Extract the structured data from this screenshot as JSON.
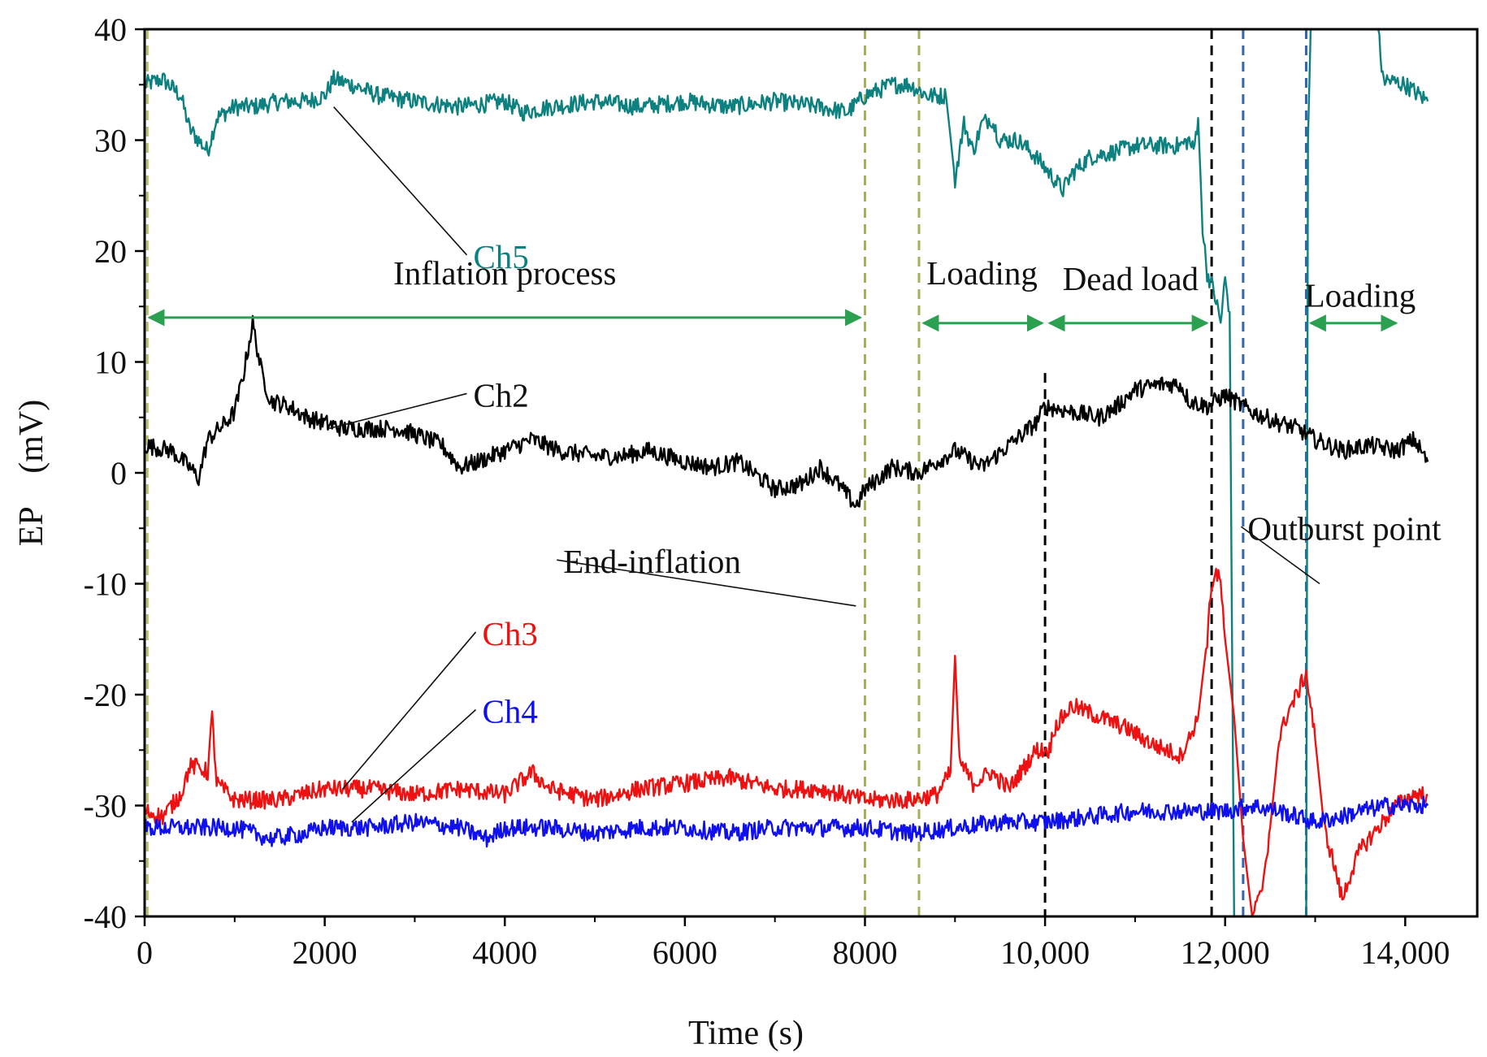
{
  "chart_data": {
    "type": "line",
    "title": "",
    "xlabel": "Time (s)",
    "ylabel": "EP　(mV)",
    "xlim": [
      0,
      14800
    ],
    "ylim": [
      -40,
      40
    ],
    "x_ticks": [
      {
        "value": 0,
        "label": "0"
      },
      {
        "value": 2000,
        "label": "2000"
      },
      {
        "value": 4000,
        "label": "4000"
      },
      {
        "value": 6000,
        "label": "6000"
      },
      {
        "value": 8000,
        "label": "8000"
      },
      {
        "value": 10000,
        "label": "10,000"
      },
      {
        "value": 12000,
        "label": "12,000"
      },
      {
        "value": 14000,
        "label": "14,000"
      }
    ],
    "y_ticks": [
      {
        "value": 40,
        "label": "40"
      },
      {
        "value": 30,
        "label": "30"
      },
      {
        "value": 20,
        "label": "20"
      },
      {
        "value": 10,
        "label": "10"
      },
      {
        "value": 0,
        "label": "0"
      },
      {
        "value": -10,
        "label": "-10"
      },
      {
        "value": -20,
        "label": "-20"
      },
      {
        "value": -30,
        "label": "-30"
      },
      {
        "value": -40,
        "label": "-40"
      }
    ],
    "grid": false,
    "series": [
      {
        "name": "Ch5",
        "color": "#0d8080",
        "points": [
          [
            0,
            35
          ],
          [
            200,
            35.5
          ],
          [
            400,
            34
          ],
          [
            500,
            31
          ],
          [
            600,
            30
          ],
          [
            700,
            29
          ],
          [
            800,
            32
          ],
          [
            1000,
            33
          ],
          [
            1200,
            33
          ],
          [
            1500,
            33.5
          ],
          [
            1800,
            33.5
          ],
          [
            2000,
            34
          ],
          [
            2100,
            35.5
          ],
          [
            2300,
            35
          ],
          [
            2600,
            34
          ],
          [
            3000,
            33.5
          ],
          [
            3500,
            33
          ],
          [
            4000,
            33.5
          ],
          [
            4200,
            32.5
          ],
          [
            4500,
            33
          ],
          [
            5000,
            33.5
          ],
          [
            5500,
            33
          ],
          [
            6000,
            33.5
          ],
          [
            6500,
            33
          ],
          [
            7000,
            33.5
          ],
          [
            7500,
            33
          ],
          [
            7800,
            32.5
          ],
          [
            8000,
            34
          ],
          [
            8300,
            35
          ],
          [
            8500,
            35
          ],
          [
            8700,
            34
          ],
          [
            8900,
            34
          ],
          [
            9000,
            26.5
          ],
          [
            9100,
            31.5
          ],
          [
            9200,
            29
          ],
          [
            9300,
            31.5
          ],
          [
            9400,
            32
          ],
          [
            9500,
            30
          ],
          [
            9700,
            30
          ],
          [
            9900,
            28.5
          ],
          [
            10100,
            26.5
          ],
          [
            10200,
            25.5
          ],
          [
            10300,
            27
          ],
          [
            10500,
            28.5
          ],
          [
            10800,
            29
          ],
          [
            11000,
            29.5
          ],
          [
            11300,
            29.5
          ],
          [
            11500,
            29.5
          ],
          [
            11600,
            30
          ],
          [
            11650,
            29
          ],
          [
            11700,
            32
          ],
          [
            11750,
            22
          ],
          [
            11800,
            18
          ],
          [
            11850,
            17
          ],
          [
            11900,
            15.5
          ],
          [
            11950,
            13.5
          ],
          [
            12000,
            17.5
          ],
          [
            12050,
            14.5
          ],
          [
            12100,
            -40
          ],
          [
            12900,
            -40
          ],
          [
            12920,
            30
          ],
          [
            12950,
            40
          ],
          [
            13700,
            40
          ],
          [
            13750,
            35.5
          ],
          [
            14000,
            35
          ],
          [
            14250,
            33.5
          ]
        ]
      },
      {
        "name": "Ch2",
        "color": "#000000",
        "points": [
          [
            0,
            2.5
          ],
          [
            300,
            2
          ],
          [
            500,
            0.5
          ],
          [
            600,
            -0.5
          ],
          [
            700,
            3
          ],
          [
            900,
            4.5
          ],
          [
            1000,
            5.5
          ],
          [
            1100,
            9
          ],
          [
            1200,
            13.5
          ],
          [
            1300,
            9
          ],
          [
            1400,
            6.5
          ],
          [
            1600,
            6
          ],
          [
            1800,
            5
          ],
          [
            2000,
            4.5
          ],
          [
            2200,
            4
          ],
          [
            2500,
            4
          ],
          [
            2800,
            4
          ],
          [
            3000,
            3.5
          ],
          [
            3300,
            2.5
          ],
          [
            3500,
            0.5
          ],
          [
            3700,
            1
          ],
          [
            4000,
            2
          ],
          [
            4300,
            3
          ],
          [
            4600,
            2
          ],
          [
            5000,
            1.5
          ],
          [
            5300,
            1.5
          ],
          [
            5600,
            2
          ],
          [
            6000,
            1
          ],
          [
            6300,
            0.5
          ],
          [
            6600,
            1
          ],
          [
            7000,
            -1.5
          ],
          [
            7300,
            -1
          ],
          [
            7500,
            0.5
          ],
          [
            7700,
            -1
          ],
          [
            7900,
            -3
          ],
          [
            8000,
            -1.5
          ],
          [
            8300,
            0.5
          ],
          [
            8600,
            0
          ],
          [
            9000,
            2
          ],
          [
            9300,
            0.5
          ],
          [
            9600,
            2.5
          ],
          [
            9900,
            4.5
          ],
          [
            10000,
            6
          ],
          [
            10300,
            5.5
          ],
          [
            10600,
            5
          ],
          [
            10800,
            6
          ],
          [
            11000,
            7.5
          ],
          [
            11300,
            8
          ],
          [
            11500,
            8
          ],
          [
            11600,
            6.5
          ],
          [
            11800,
            6
          ],
          [
            12000,
            7
          ],
          [
            12300,
            5.5
          ],
          [
            12600,
            4.5
          ],
          [
            12800,
            4
          ],
          [
            13000,
            3
          ],
          [
            13300,
            2
          ],
          [
            13600,
            2.5
          ],
          [
            13900,
            2
          ],
          [
            14100,
            3
          ],
          [
            14250,
            1
          ]
        ]
      },
      {
        "name": "Ch3",
        "color": "#ee1111",
        "points": [
          [
            0,
            -30.5
          ],
          [
            200,
            -31
          ],
          [
            400,
            -29
          ],
          [
            500,
            -26.5
          ],
          [
            600,
            -26.5
          ],
          [
            700,
            -27
          ],
          [
            750,
            -22
          ],
          [
            800,
            -28
          ],
          [
            1000,
            -29.5
          ],
          [
            1500,
            -29.5
          ],
          [
            2000,
            -28.5
          ],
          [
            2500,
            -28.5
          ],
          [
            3000,
            -29
          ],
          [
            3500,
            -28.5
          ],
          [
            4000,
            -29
          ],
          [
            4300,
            -27
          ],
          [
            4500,
            -28.5
          ],
          [
            5000,
            -29.5
          ],
          [
            5500,
            -28.5
          ],
          [
            6000,
            -28
          ],
          [
            6500,
            -27.5
          ],
          [
            7000,
            -28.5
          ],
          [
            7500,
            -28.5
          ],
          [
            8000,
            -29.5
          ],
          [
            8500,
            -29.5
          ],
          [
            8800,
            -29
          ],
          [
            8950,
            -27
          ],
          [
            9000,
            -16.5
          ],
          [
            9050,
            -26
          ],
          [
            9200,
            -28
          ],
          [
            9400,
            -27
          ],
          [
            9600,
            -28.5
          ],
          [
            9900,
            -25
          ],
          [
            10000,
            -25
          ],
          [
            10050,
            -25
          ],
          [
            10100,
            -23
          ],
          [
            10300,
            -21
          ],
          [
            10600,
            -22
          ],
          [
            10900,
            -23
          ],
          [
            11200,
            -24.5
          ],
          [
            11500,
            -25.5
          ],
          [
            11600,
            -24
          ],
          [
            11700,
            -22
          ],
          [
            11800,
            -15
          ],
          [
            11850,
            -10
          ],
          [
            11900,
            -9
          ],
          [
            11950,
            -10
          ],
          [
            12000,
            -15
          ],
          [
            12100,
            -22
          ],
          [
            12200,
            -33
          ],
          [
            12300,
            -40
          ],
          [
            12400,
            -38
          ],
          [
            12500,
            -32
          ],
          [
            12600,
            -24
          ],
          [
            12700,
            -21.5
          ],
          [
            12800,
            -20
          ],
          [
            12900,
            -18
          ],
          [
            13000,
            -24
          ],
          [
            13100,
            -32
          ],
          [
            13200,
            -35
          ],
          [
            13300,
            -38.5
          ],
          [
            13400,
            -36
          ],
          [
            13500,
            -34
          ],
          [
            13700,
            -32
          ],
          [
            13900,
            -30
          ],
          [
            14100,
            -29
          ],
          [
            14250,
            -29
          ]
        ]
      },
      {
        "name": "Ch4",
        "color": "#1010ee",
        "points": [
          [
            0,
            -32
          ],
          [
            500,
            -32
          ],
          [
            1000,
            -32
          ],
          [
            1400,
            -33
          ],
          [
            1800,
            -32.5
          ],
          [
            2000,
            -32
          ],
          [
            2500,
            -32
          ],
          [
            3000,
            -31.5
          ],
          [
            3500,
            -32
          ],
          [
            3800,
            -33
          ],
          [
            4000,
            -32
          ],
          [
            4500,
            -32
          ],
          [
            5000,
            -32.5
          ],
          [
            5500,
            -32
          ],
          [
            6000,
            -32
          ],
          [
            6500,
            -32.5
          ],
          [
            7000,
            -32
          ],
          [
            7500,
            -32
          ],
          [
            8000,
            -32
          ],
          [
            8500,
            -32.5
          ],
          [
            9000,
            -32
          ],
          [
            9500,
            -31.5
          ],
          [
            10000,
            -31.5
          ],
          [
            10500,
            -31
          ],
          [
            11000,
            -30.5
          ],
          [
            11500,
            -30.5
          ],
          [
            12000,
            -30.5
          ],
          [
            12300,
            -30
          ],
          [
            12600,
            -30.5
          ],
          [
            12800,
            -31
          ],
          [
            13000,
            -31.5
          ],
          [
            13300,
            -31
          ],
          [
            13500,
            -30.5
          ],
          [
            13800,
            -30
          ],
          [
            14000,
            -30
          ],
          [
            14250,
            -30
          ]
        ]
      }
    ],
    "vertical_lines": [
      {
        "x": 30,
        "color": "#b8bf6a",
        "style": "dashed"
      },
      {
        "x": 8000,
        "color": "#a6b05a",
        "style": "dashed"
      },
      {
        "x": 8600,
        "color": "#a6b05a",
        "style": "dashed"
      },
      {
        "x": 10000,
        "color": "#000000",
        "style": "dashed",
        "y_top": 9
      },
      {
        "x": 11850,
        "color": "#000000",
        "style": "dashed"
      },
      {
        "x": 12200,
        "color": "#3565a8",
        "style": "dashed"
      },
      {
        "x": 12900,
        "color": "#3565a8",
        "style": "dashed"
      }
    ],
    "annotations": [
      {
        "text": "Ch5",
        "color": "#0d8080",
        "x": 3650,
        "y": 19.5,
        "line_to": [
          2100,
          33
        ]
      },
      {
        "text": "Ch2",
        "color": "#111111",
        "x": 3650,
        "y": 7,
        "line_to": [
          2050,
          4
        ]
      },
      {
        "text": "Ch3",
        "color": "#ee1111",
        "x": 3750,
        "y": -14.5,
        "line_to": [
          2200,
          -28.5
        ]
      },
      {
        "text": "Ch4",
        "color": "#1010ee",
        "x": 3750,
        "y": -21.5,
        "line_to": [
          2300,
          -31.5
        ]
      },
      {
        "text": "End-inflation",
        "color": "#111111",
        "x": 4650,
        "y": -8,
        "line_to": [
          7900,
          -12
        ]
      },
      {
        "text": "Outburst point",
        "color": "#111111",
        "x": 12250,
        "y": -5,
        "line_to": [
          13050,
          -10
        ]
      }
    ],
    "phases": [
      {
        "label": "Inflation process",
        "color": "#2aa050",
        "x_start": 50,
        "x_end": 7950,
        "arrow_y": 14,
        "label_x": 4000,
        "label_y": 17
      },
      {
        "label": "Loading",
        "color": "#2aa050",
        "x_start": 8650,
        "x_end": 9970,
        "arrow_y": 13.5,
        "label_x": 9300,
        "label_y": 17
      },
      {
        "label": "Dead load",
        "color": "#2aa050",
        "x_start": 10050,
        "x_end": 11800,
        "arrow_y": 13.5,
        "label_x": 10950,
        "label_y": 16.5
      },
      {
        "label": "Loading",
        "color": "#2aa050",
        "x_start": 12950,
        "x_end": 13900,
        "arrow_y": 13.5,
        "label_x": 13500,
        "label_y": 15
      }
    ]
  }
}
